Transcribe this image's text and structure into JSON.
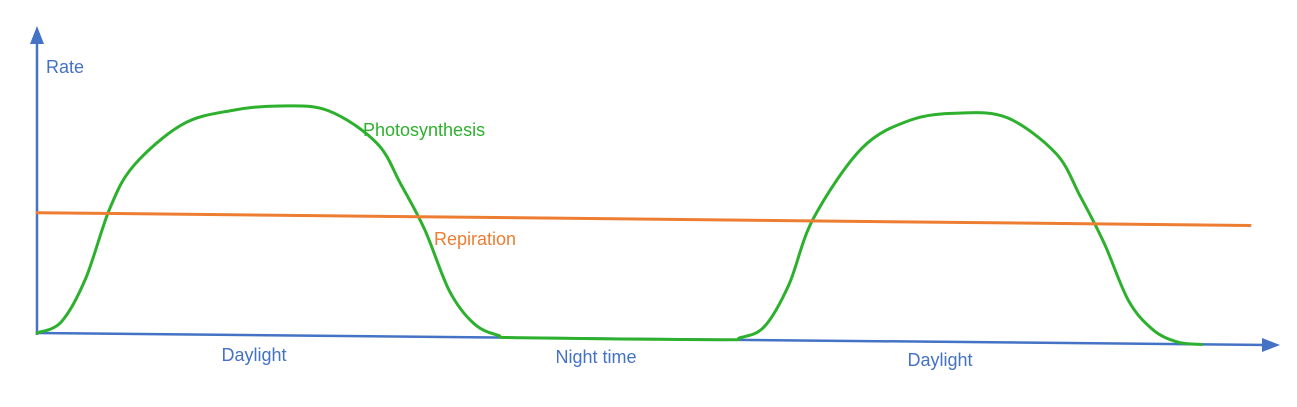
{
  "chart_data": {
    "type": "line",
    "title": "",
    "ylabel": "Rate",
    "xlabel": "",
    "x_period_labels": [
      "Daylight",
      "Night time",
      "Daylight"
    ],
    "grid": false,
    "legend": "none",
    "ylim": [
      0,
      100
    ],
    "xlim": [
      0,
      100
    ],
    "series": [
      {
        "name": "Photosynthesis",
        "color": "#2db02d",
        "x": [
          0,
          2,
          4,
          6,
          8,
          12,
          16,
          20,
          24,
          28,
          30,
          32,
          34,
          36,
          38,
          40,
          56,
          58,
          60,
          62,
          64,
          68,
          72,
          76,
          80,
          84,
          86,
          88,
          90,
          92,
          94,
          96
        ],
        "y": [
          0,
          5,
          24,
          55,
          74,
          92,
          98,
          100,
          98,
          84,
          66,
          46,
          20,
          6,
          1,
          0,
          0,
          1,
          6,
          24,
          52,
          82,
          94,
          97,
          95,
          80,
          62,
          42,
          18,
          6,
          1,
          0
        ]
      },
      {
        "name": "Repiration",
        "color": "#ec7d31",
        "x": [
          0,
          100
        ],
        "y": [
          53,
          50
        ]
      }
    ],
    "axis_color": "#4472c4",
    "label_color": "#4472c4"
  }
}
